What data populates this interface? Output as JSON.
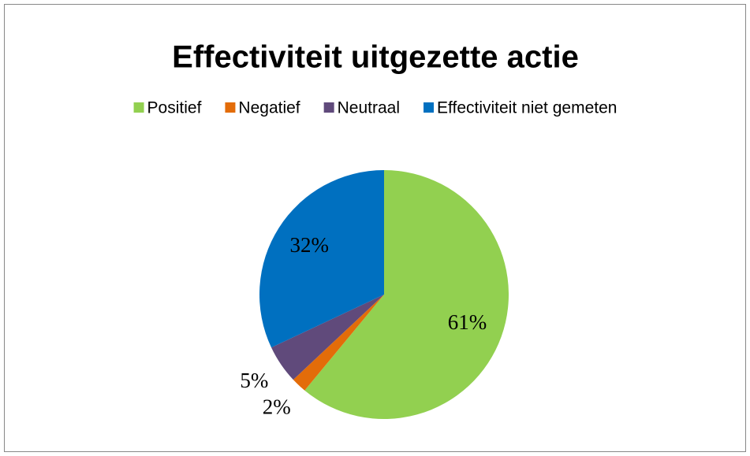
{
  "chart_data": {
    "type": "pie",
    "title": "Effectiviteit uitgezette actie",
    "categories": [
      "Positief",
      "Negatief",
      "Neutraal",
      "Effectiviteit niet gemeten"
    ],
    "values": [
      61,
      2,
      5,
      32
    ],
    "value_labels": [
      "61%",
      "2%",
      "5%",
      "32%"
    ],
    "colors": [
      "#92d050",
      "#e36c09",
      "#604a7b",
      "#0070c0"
    ],
    "legend": "top"
  }
}
